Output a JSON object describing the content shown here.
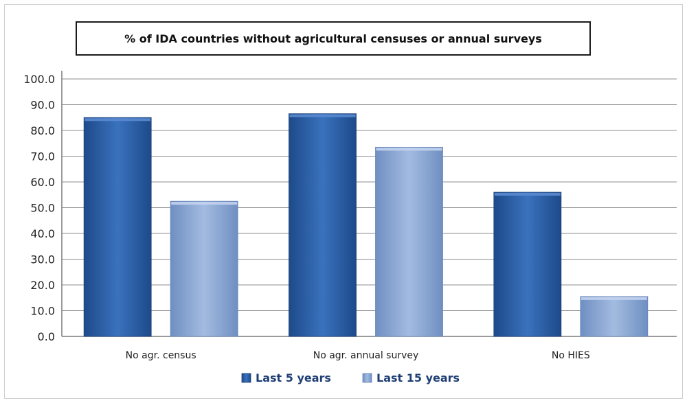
{
  "chart_data": {
    "type": "bar",
    "title": "% of IDA countries without agricultural censuses or annual surveys",
    "categories": [
      "No agr. census",
      "No agr. annual survey",
      "No HIES"
    ],
    "series": [
      {
        "name": "Last 5 years",
        "values": [
          85.0,
          86.5,
          56.0
        ],
        "color": "#2f63a8"
      },
      {
        "name": "Last 15 years",
        "values": [
          52.5,
          73.5,
          15.5
        ],
        "color": "#8ca8d4"
      }
    ],
    "ylim": [
      0,
      100
    ],
    "yticks": [
      "0.0",
      "10.0",
      "20.0",
      "30.0",
      "40.0",
      "50.0",
      "60.0",
      "70.0",
      "80.0",
      "90.0",
      "100.0"
    ],
    "grid": true,
    "legend": "bottom",
    "xlabel": "",
    "ylabel": ""
  }
}
